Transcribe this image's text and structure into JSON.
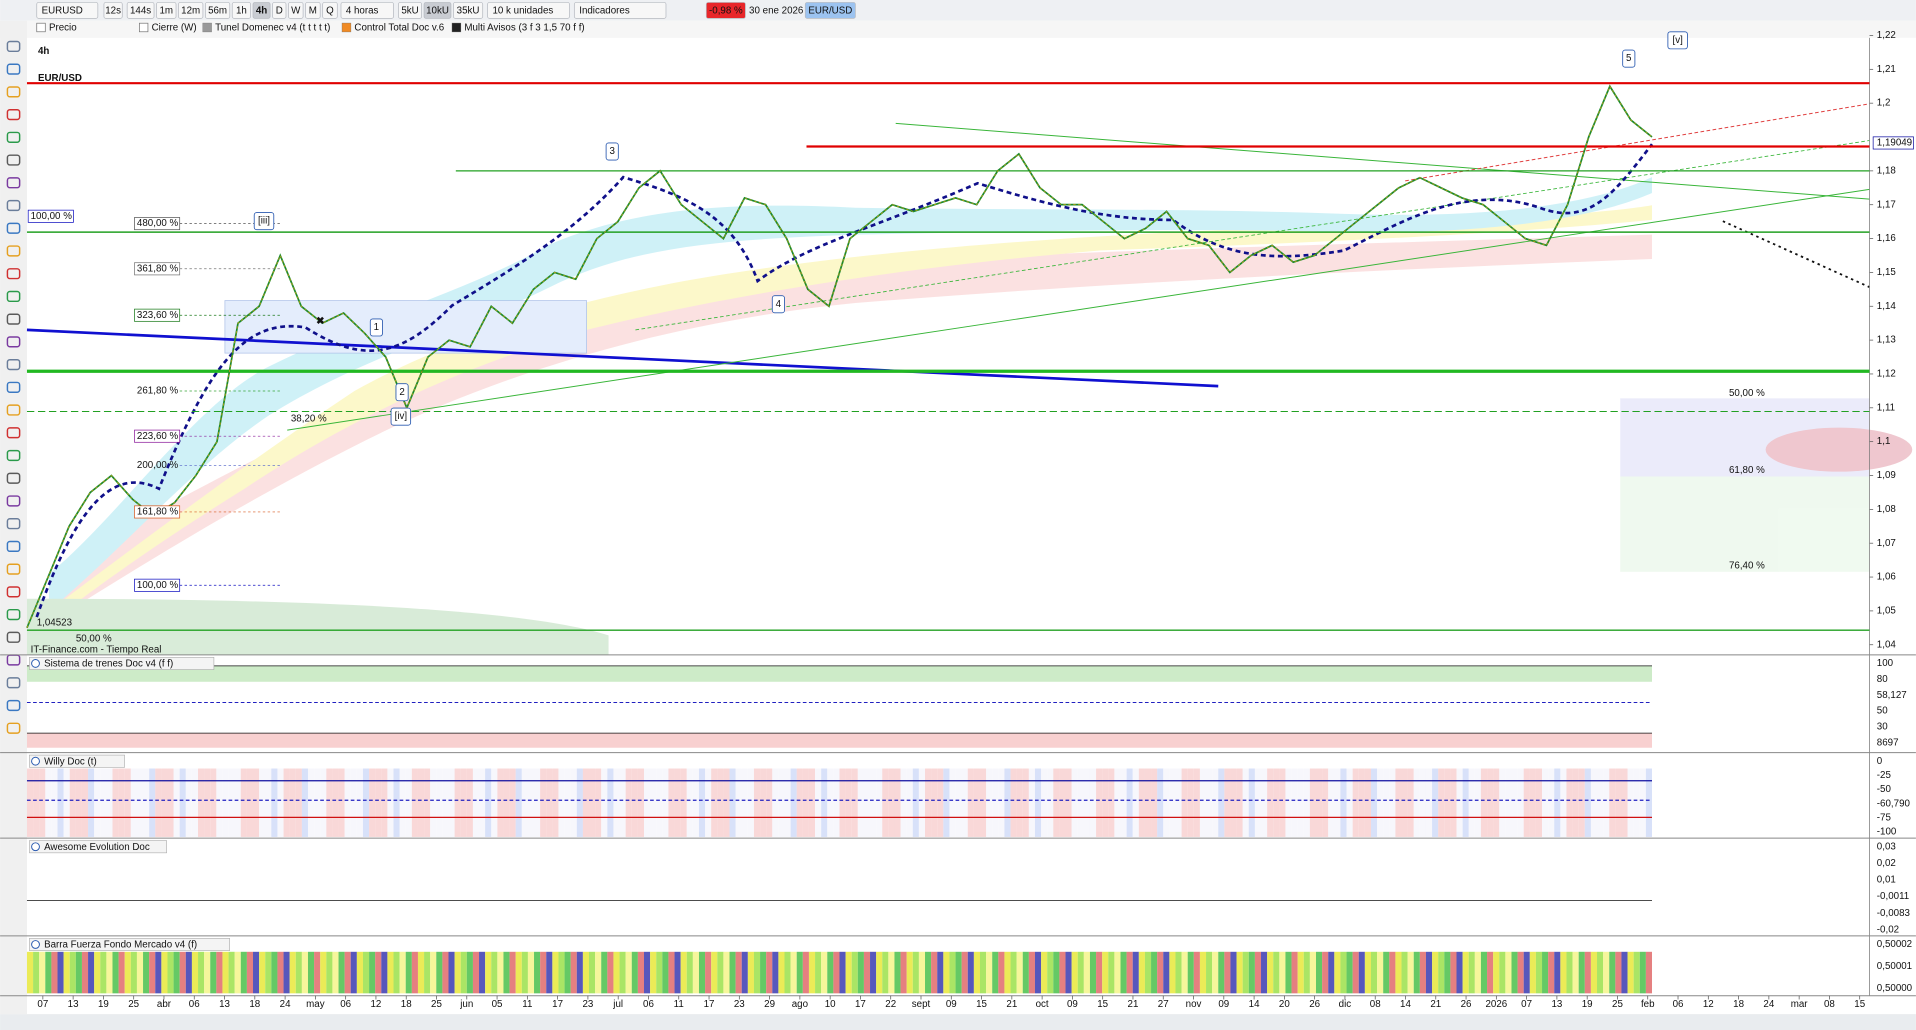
{
  "toolbar": {
    "symbol": "EURUSD",
    "timeframes": [
      "12s",
      "144s",
      "1m",
      "12m",
      "56m",
      "1h",
      "4h",
      "D",
      "W",
      "M",
      "Q"
    ],
    "period": "4 horas",
    "units": [
      "5kU",
      "10kU",
      "35kU"
    ],
    "unit_size": "10 k unidades",
    "indicators": "Indicadores",
    "change": "-0,98 %",
    "date": "30 ene 2026",
    "pair": "EUR/USD"
  },
  "indicator_bar": [
    "Precio",
    "Cierre (W)",
    "Tunel Domenec v4 (t t t t t)",
    "Control Total Doc v.6",
    "Multi Avisos (3 f 3 1,5 70 f f)"
  ],
  "main_chart": {
    "timeframe": "4h",
    "symbol": "EUR/USD",
    "source": "IT-Finance.com - Tiempo Real",
    "start_price": "1,04523",
    "last_price": "1,19049",
    "ylim": [
      1.037,
      1.2229
    ],
    "yticks": [
      {
        "value": 1.04,
        "label": "1,04"
      },
      {
        "value": 1.05,
        "label": "1,05"
      },
      {
        "value": 1.06,
        "label": "1,06"
      },
      {
        "value": 1.07,
        "label": "1,07"
      },
      {
        "value": 1.08,
        "label": "1,08"
      },
      {
        "value": 1.09,
        "label": "1,09"
      },
      {
        "value": 1.1,
        "label": "1,1"
      },
      {
        "value": 1.11,
        "label": "1,11"
      },
      {
        "value": 1.12,
        "label": "1,12"
      },
      {
        "value": 1.13,
        "label": "1,13"
      },
      {
        "value": 1.14,
        "label": "1,14"
      },
      {
        "value": 1.15,
        "label": "1,15"
      },
      {
        "value": 1.16,
        "label": "1,16"
      },
      {
        "value": 1.17,
        "label": "1,17"
      },
      {
        "value": 1.18,
        "label": "1,18"
      },
      {
        "value": 1.2,
        "label": "1,2"
      },
      {
        "value": 1.21,
        "label": "1,21"
      },
      {
        "value": 1.22,
        "label": "1,22"
      }
    ],
    "price": [
      1.045,
      1.06,
      1.075,
      1.085,
      1.09,
      1.083,
      1.078,
      1.082,
      1.09,
      1.1,
      1.135,
      1.14,
      1.155,
      1.14,
      1.135,
      1.138,
      1.132,
      1.125,
      1.11,
      1.125,
      1.13,
      1.128,
      1.14,
      1.135,
      1.145,
      1.15,
      1.148,
      1.16,
      1.165,
      1.175,
      1.18,
      1.17,
      1.165,
      1.16,
      1.172,
      1.17,
      1.16,
      1.145,
      1.14,
      1.16,
      1.165,
      1.17,
      1.168,
      1.17,
      1.172,
      1.17,
      1.18,
      1.185,
      1.175,
      1.17,
      1.17,
      1.165,
      1.16,
      1.163,
      1.168,
      1.16,
      1.158,
      1.15,
      1.155,
      1.158,
      1.153,
      1.155,
      1.16,
      1.165,
      1.17,
      1.175,
      1.178,
      1.175,
      1.172,
      1.17,
      1.165,
      1.16,
      1.158,
      1.17,
      1.19,
      1.205,
      1.195,
      1.19
    ],
    "levels": [
      {
        "value": 1.2059,
        "color": "#e00000"
      },
      {
        "value": 1.1872,
        "color": "#e00000"
      },
      {
        "value": 1.18,
        "color": "#22a022"
      },
      {
        "value": 1.1619,
        "color": "#22a022"
      },
      {
        "value": 1.1208,
        "color": "#22b822"
      },
      {
        "value": 1.1089,
        "color": "#22a022"
      },
      {
        "value": 1.0443,
        "color": "#22a022"
      }
    ],
    "fib_labels": [
      "480,00 %",
      "361,80 %",
      "323,60 %",
      "261,80 %",
      "223,60 %",
      "200,00 %",
      "161,80 %",
      "100,00 %",
      "100,00 %",
      "50,00 %",
      "50,00 %",
      "61,80 %",
      "76,40 %",
      "38,20 %"
    ],
    "wave_labels": [
      "3",
      "4",
      "5",
      "1",
      "2",
      "[iii]",
      "[iv]",
      "[v]"
    ]
  },
  "panels": [
    {
      "title": "Sistema de trenes Doc v4 (f f)",
      "axis_labels": [
        "100",
        "80",
        "58,127",
        "50",
        "30",
        "8697"
      ]
    },
    {
      "title": "Willy Doc (t)",
      "axis_labels": [
        "0",
        "-25",
        "-50",
        "-60,790",
        "-75",
        "-100"
      ]
    },
    {
      "title": "Awesome Evolution Doc",
      "axis_labels": [
        "0,03",
        "0,02",
        "0,01",
        "-0,0011",
        "-0,0083",
        "-0,02"
      ]
    },
    {
      "title": "Barra Fuerza Fondo Mercado v4 (f)",
      "axis_labels": [
        "0,50002",
        "0,50001",
        "0,50000"
      ]
    }
  ],
  "date_axis": [
    "07",
    "13",
    "19",
    "25",
    "abr",
    "06",
    "13",
    "18",
    "24",
    "may",
    "06",
    "12",
    "18",
    "25",
    "jun",
    "05",
    "11",
    "17",
    "23",
    "jul",
    "06",
    "11",
    "17",
    "23",
    "29",
    "ago",
    "10",
    "17",
    "22",
    "sept",
    "09",
    "15",
    "21",
    "oct",
    "09",
    "15",
    "21",
    "27",
    "nov",
    "09",
    "14",
    "20",
    "26",
    "dic",
    "08",
    "14",
    "21",
    "26",
    "2026",
    "07",
    "13",
    "19",
    "25",
    "feb",
    "06",
    "12",
    "18",
    "24",
    "mar",
    "08",
    "15"
  ]
}
